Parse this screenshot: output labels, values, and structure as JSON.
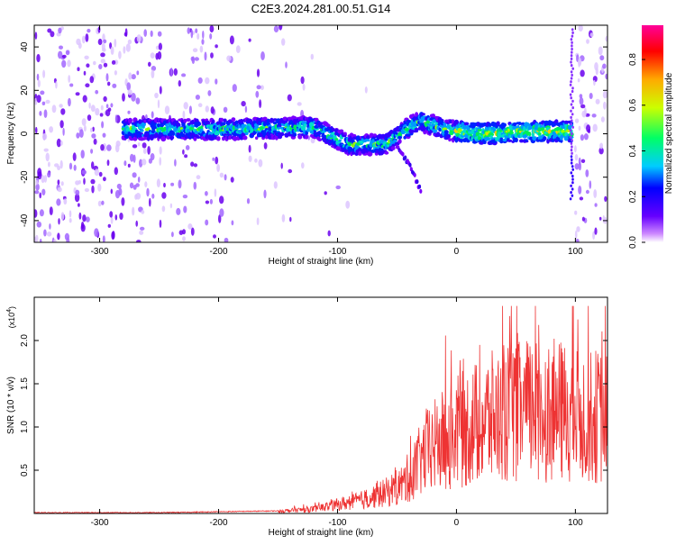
{
  "figure": {
    "title": "C2E3.2024.281.00.51.G14"
  },
  "chart_data": [
    {
      "type": "heatmap",
      "title": "C2E3.2024.281.00.51.G14",
      "xlabel": "Height of straight line (km)",
      "ylabel": "Frequency (Hz)",
      "xlim": [
        -355,
        127
      ],
      "ylim": [
        -50,
        50
      ],
      "xticks": [
        -300,
        -200,
        -100,
        0,
        100
      ],
      "yticks": [
        -40,
        -20,
        0,
        20,
        40
      ],
      "colorbar": {
        "label": "Normalized spectral amplitude",
        "range": [
          0,
          0.95
        ],
        "ticks": [
          0.0,
          0.2,
          0.4,
          0.6,
          0.8
        ],
        "colors": [
          "#ffffff",
          "#cc88ff",
          "#6600ff",
          "#0000ff",
          "#00ccff",
          "#00ff66",
          "#ccff00",
          "#ffaa00",
          "#ff0000",
          "#ff0099"
        ]
      },
      "ridge": {
        "description_points": [
          [
            -280,
            2
          ],
          [
            -200,
            2
          ],
          [
            -120,
            3
          ],
          [
            -90,
            -5
          ],
          [
            -60,
            -5
          ],
          [
            -40,
            3
          ],
          [
            -30,
            6
          ],
          [
            -10,
            2
          ],
          [
            20,
            0
          ],
          [
            60,
            1
          ],
          [
            95,
            1
          ]
        ],
        "branch": [
          [
            -50,
            -5
          ],
          [
            -40,
            -14
          ],
          [
            -30,
            -26
          ]
        ]
      },
      "noise_edge_left": -160,
      "noise_edge_right": 100
    },
    {
      "type": "line",
      "xlabel": "Height of straight line (km)",
      "ylabel": "SNR (10 * v/v)",
      "scale_label": "(x10",
      "scale_exp": "4",
      "scale_close": ")",
      "xlim": [
        -355,
        127
      ],
      "ylim": [
        0,
        2.5
      ],
      "xticks": [
        -300,
        -200,
        -100,
        0,
        100
      ],
      "yticks": [
        0.5,
        1.0,
        1.5,
        2.0
      ],
      "ytick_labels": [
        "0.5",
        "1.0",
        "1.5",
        "2.0"
      ],
      "series": [
        {
          "color": "#ee3333",
          "envelope": [
            [
              -355,
              0.01
            ],
            [
              -250,
              0.01
            ],
            [
              -200,
              0.02
            ],
            [
              -150,
              0.03
            ],
            [
              -120,
              0.06
            ],
            [
              -100,
              0.12
            ],
            [
              -80,
              0.18
            ],
            [
              -60,
              0.28
            ],
            [
              -45,
              0.4
            ],
            [
              -35,
              0.6
            ],
            [
              -25,
              0.85
            ],
            [
              -10,
              1.0
            ],
            [
              0,
              1.1
            ],
            [
              20,
              1.25
            ],
            [
              40,
              1.35
            ],
            [
              60,
              1.4
            ],
            [
              80,
              1.4
            ],
            [
              100,
              1.35
            ],
            [
              127,
              1.3
            ]
          ],
          "max_value": 2.4
        }
      ]
    }
  ]
}
